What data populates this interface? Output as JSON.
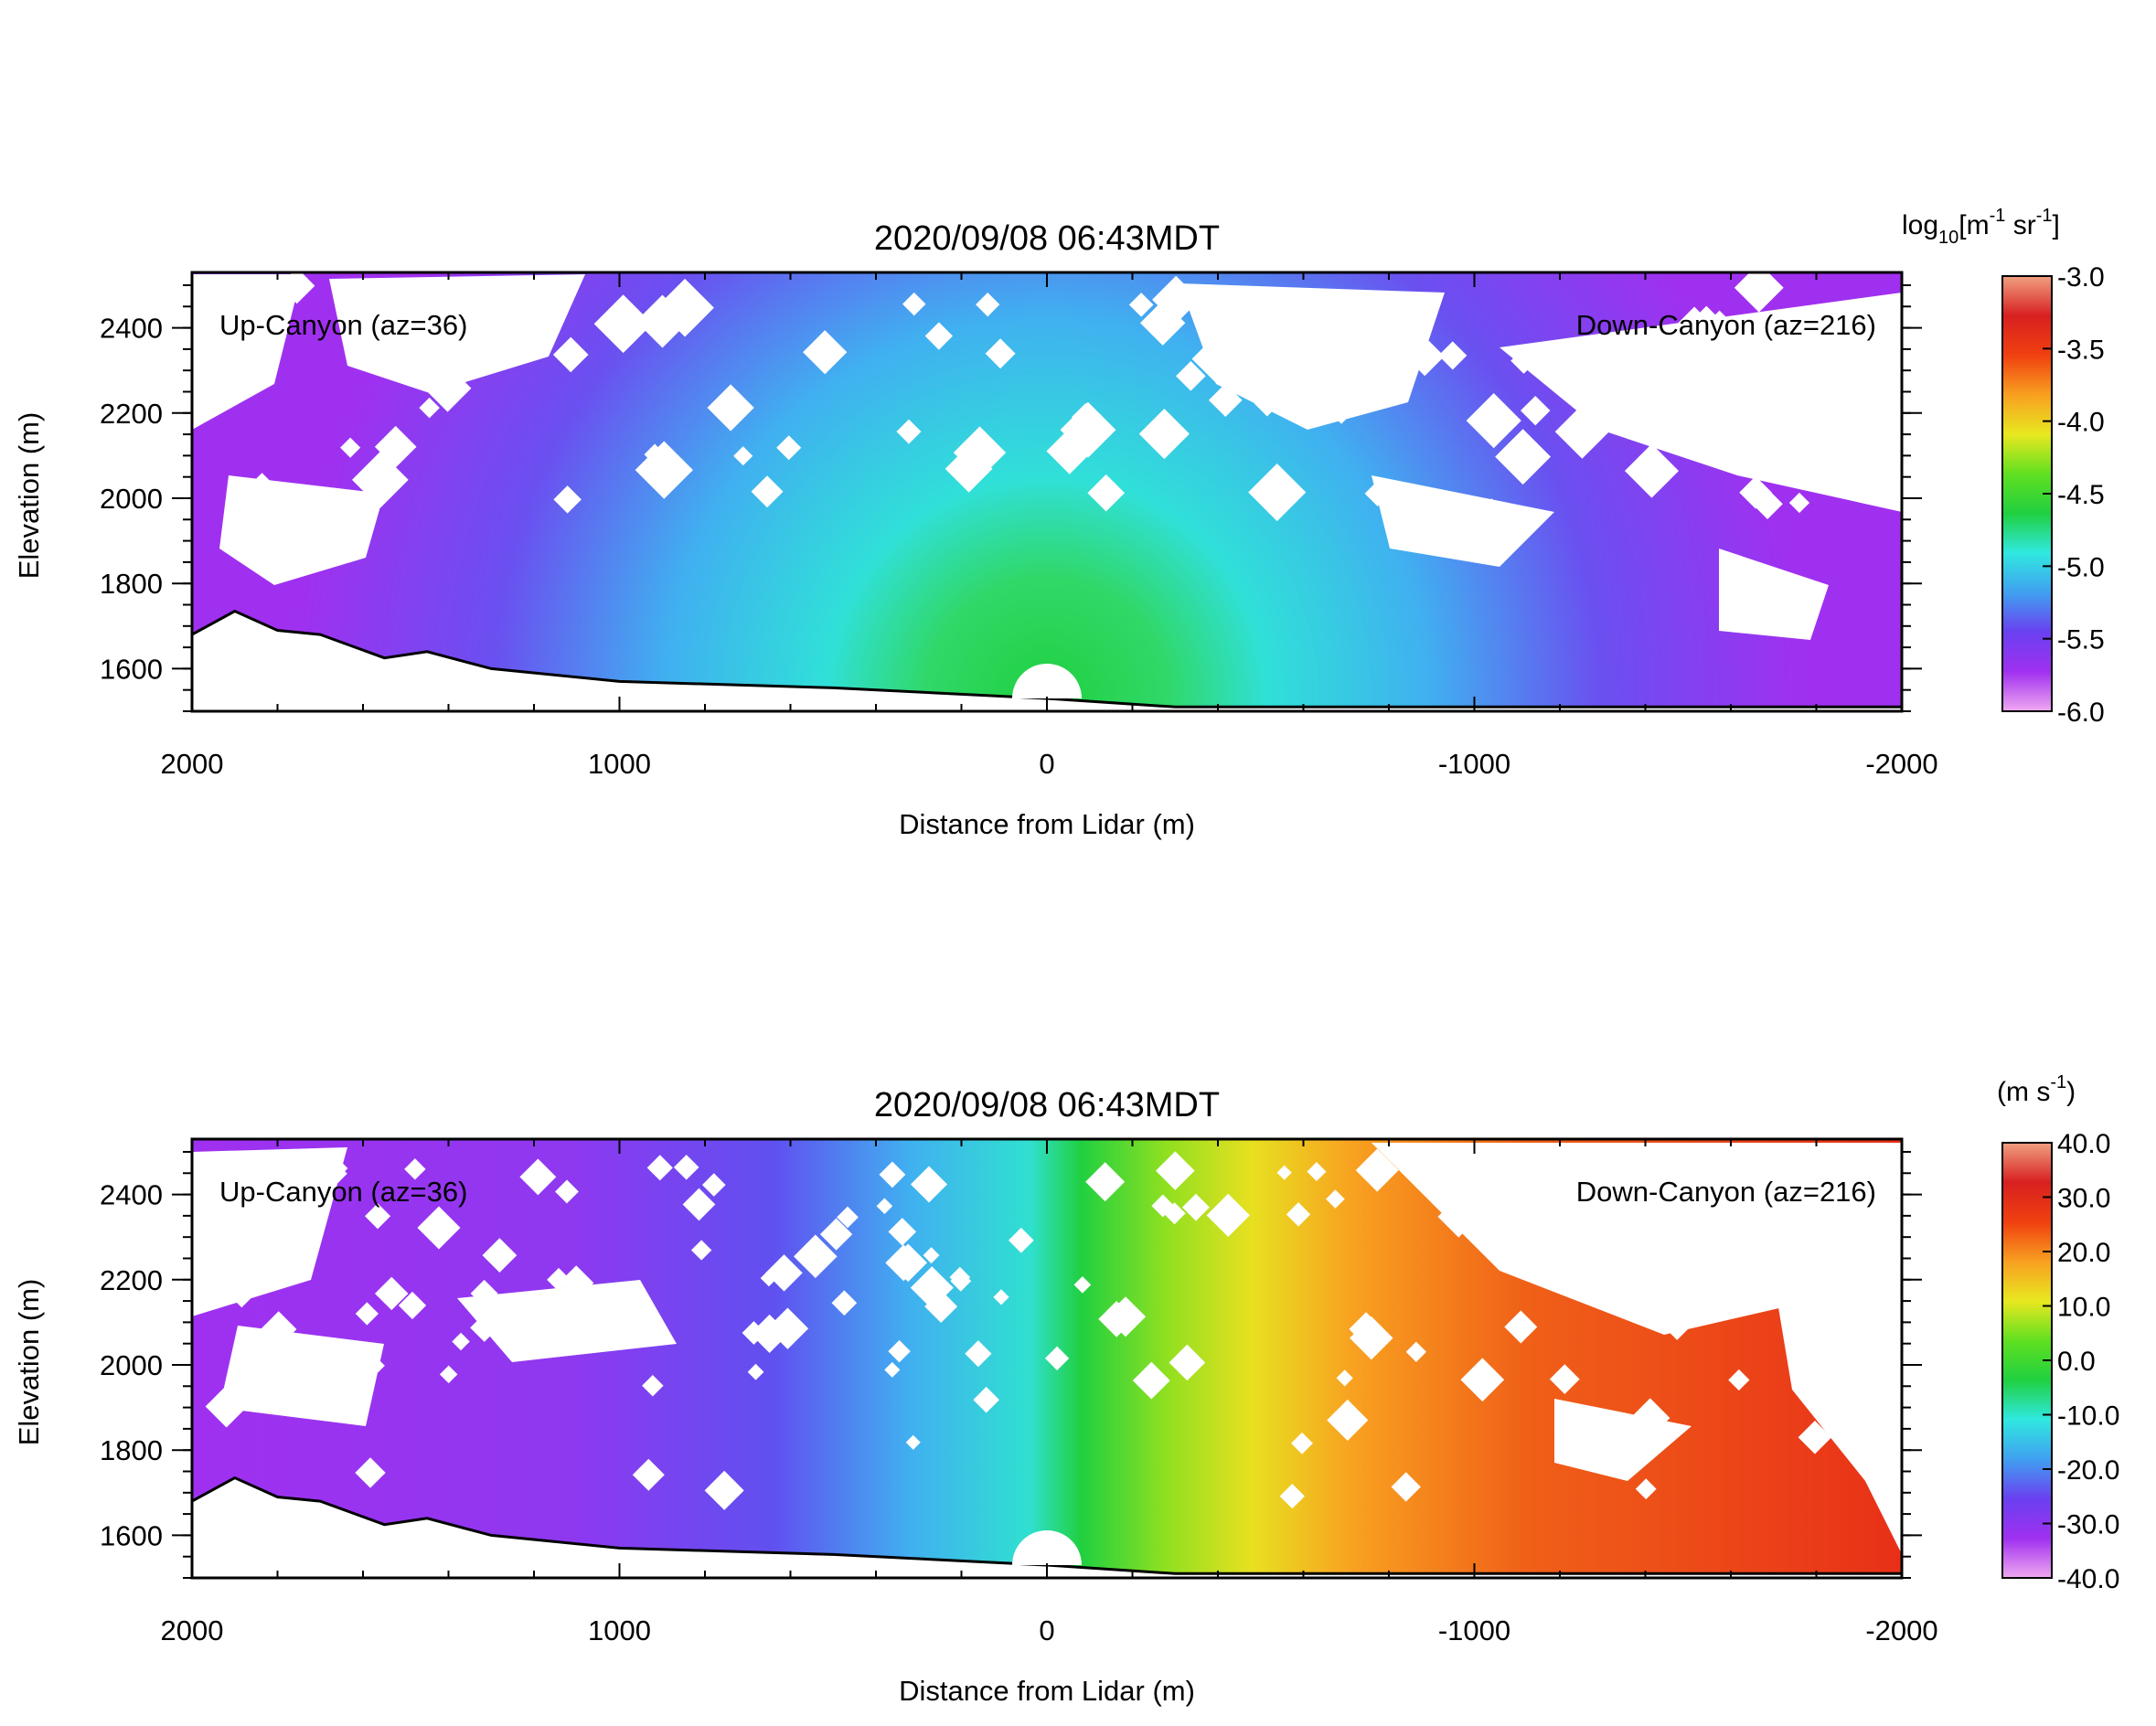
{
  "chart_data": [
    {
      "type": "heatmap",
      "title": "2020/09/08 06:43MDT",
      "xlabel": "Distance from Lidar (m)",
      "ylabel": "Elevation (m)",
      "xlim": [
        2000,
        -2000
      ],
      "ylim": [
        1500,
        2530
      ],
      "xticks": [
        "2000",
        "1000",
        "0",
        "-1000",
        "-2000"
      ],
      "yticks": [
        "1600",
        "1800",
        "2000",
        "2200",
        "2400"
      ],
      "annotations": {
        "left": "Up-Canyon (az=36)",
        "right": "Down-Canyon (az=216)"
      },
      "colorbar": {
        "label_parts": [
          "log",
          "10",
          "[m",
          "-1",
          " sr",
          "-1",
          "]"
        ],
        "range": [
          -6.0,
          -3.0
        ],
        "ticks": [
          "-3.0",
          "-3.5",
          "-4.0",
          "-4.5",
          "-5.0",
          "-5.5",
          "-6.0"
        ],
        "colors": [
          "#f0a8f0",
          "#a030f0",
          "#6a40f0",
          "#40a0f0",
          "#30e8e0",
          "#20d040",
          "#60e020",
          "#e8e820",
          "#f8a020",
          "#f04010",
          "#d82020",
          "#f0a080"
        ]
      },
      "field": "backscatter",
      "terrain_elevation_m": [
        [
          2000,
          1680
        ],
        [
          1900,
          1735
        ],
        [
          1800,
          1690
        ],
        [
          1700,
          1680
        ],
        [
          1550,
          1625
        ],
        [
          1450,
          1640
        ],
        [
          1300,
          1600
        ],
        [
          1000,
          1570
        ],
        [
          500,
          1555
        ],
        [
          0,
          1530
        ],
        [
          -300,
          1510
        ],
        [
          -2000,
          1510
        ]
      ]
    },
    {
      "type": "heatmap",
      "title": "2020/09/08 06:43MDT",
      "xlabel": "Distance from Lidar (m)",
      "ylabel": "Elevation (m)",
      "xlim": [
        2000,
        -2000
      ],
      "ylim": [
        1500,
        2530
      ],
      "xticks": [
        "2000",
        "1000",
        "0",
        "-1000",
        "-2000"
      ],
      "yticks": [
        "1600",
        "1800",
        "2000",
        "2200",
        "2400"
      ],
      "annotations": {
        "left": "Up-Canyon (az=36)",
        "right": "Down-Canyon (az=216)"
      },
      "colorbar": {
        "label_parts": [
          "(m s",
          "-1",
          ")"
        ],
        "range": [
          -40.0,
          40.0
        ],
        "ticks": [
          "40.0",
          "30.0",
          "20.0",
          "10.0",
          "0.0",
          "-10.0",
          "-20.0",
          "-30.0",
          "-40.0"
        ],
        "colors": [
          "#f0a8f0",
          "#a030f0",
          "#6a40f0",
          "#40a0f0",
          "#30e8e0",
          "#20d040",
          "#60e020",
          "#e8e820",
          "#f8a020",
          "#f04010",
          "#d82020",
          "#f0a080"
        ]
      },
      "field": "radial_velocity",
      "terrain_elevation_m": [
        [
          2000,
          1680
        ],
        [
          1900,
          1735
        ],
        [
          1800,
          1690
        ],
        [
          1700,
          1680
        ],
        [
          1550,
          1625
        ],
        [
          1450,
          1640
        ],
        [
          1300,
          1600
        ],
        [
          1000,
          1570
        ],
        [
          500,
          1555
        ],
        [
          0,
          1530
        ],
        [
          -300,
          1510
        ],
        [
          -2000,
          1510
        ]
      ]
    }
  ]
}
